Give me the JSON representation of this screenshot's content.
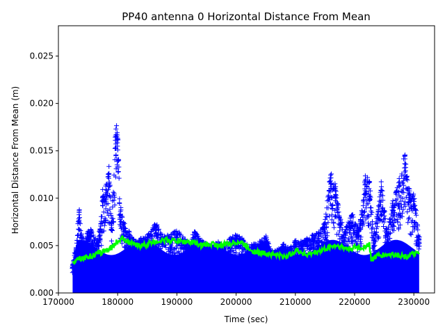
{
  "chart_data": {
    "type": "scatter",
    "title": "PP40 antenna 0 Horizontal Distance From Mean",
    "xlabel": "Time (sec)",
    "ylabel": "Horizontal Distance From Mean (m)",
    "xlim": [
      170000,
      233500
    ],
    "ylim": [
      0,
      0.0282
    ],
    "xticks": [
      170000,
      180000,
      190000,
      200000,
      210000,
      220000,
      230000
    ],
    "yticks": [
      0.0,
      0.005,
      0.01,
      0.015,
      0.02,
      0.025
    ],
    "xtick_labels": [
      "170000",
      "180000",
      "190000",
      "200000",
      "210000",
      "220000",
      "230000"
    ],
    "ytick_labels": [
      "0.000",
      "0.005",
      "0.010",
      "0.015",
      "0.020",
      "0.025"
    ],
    "grid": false,
    "x_range_data": [
      172400,
      230900
    ],
    "series": [
      {
        "marker": "+",
        "color": "#0000ff",
        "description_of_upper_envelope": "sampled max per time bin",
        "envelope": [
          [
            172400,
            0.0032
          ],
          [
            173000,
            0.005
          ],
          [
            173500,
            0.009
          ],
          [
            174000,
            0.006
          ],
          [
            175000,
            0.0065
          ],
          [
            175500,
            0.0068
          ],
          [
            176500,
            0.0055
          ],
          [
            177000,
            0.007
          ],
          [
            177500,
            0.011
          ],
          [
            178000,
            0.0115
          ],
          [
            178500,
            0.0138
          ],
          [
            179000,
            0.008
          ],
          [
            179700,
            0.0181
          ],
          [
            180000,
            0.017
          ],
          [
            180500,
            0.009
          ],
          [
            181000,
            0.0075
          ],
          [
            182000,
            0.0065
          ],
          [
            183000,
            0.0055
          ],
          [
            184000,
            0.0058
          ],
          [
            185000,
            0.006
          ],
          [
            186500,
            0.0075
          ],
          [
            187500,
            0.006
          ],
          [
            189000,
            0.0062
          ],
          [
            190000,
            0.0067
          ],
          [
            191000,
            0.006
          ],
          [
            192000,
            0.0052
          ],
          [
            193000,
            0.0065
          ],
          [
            194000,
            0.0058
          ],
          [
            195000,
            0.0052
          ],
          [
            196000,
            0.005
          ],
          [
            197000,
            0.0055
          ],
          [
            198000,
            0.005
          ],
          [
            199000,
            0.0058
          ],
          [
            200000,
            0.0062
          ],
          [
            201000,
            0.0058
          ],
          [
            202000,
            0.005
          ],
          [
            203000,
            0.0052
          ],
          [
            204000,
            0.0055
          ],
          [
            205000,
            0.006
          ],
          [
            206000,
            0.0045
          ],
          [
            207000,
            0.0046
          ],
          [
            208000,
            0.0052
          ],
          [
            209000,
            0.0048
          ],
          [
            210000,
            0.0056
          ],
          [
            211000,
            0.0055
          ],
          [
            212000,
            0.0058
          ],
          [
            213000,
            0.0062
          ],
          [
            214000,
            0.0065
          ],
          [
            215000,
            0.0075
          ],
          [
            216000,
            0.013
          ],
          [
            216800,
            0.0115
          ],
          [
            217500,
            0.008
          ],
          [
            218500,
            0.0068
          ],
          [
            219500,
            0.0085
          ],
          [
            220500,
            0.007
          ],
          [
            221000,
            0.0078
          ],
          [
            221800,
            0.0125
          ],
          [
            222500,
            0.012
          ],
          [
            223200,
            0.006
          ],
          [
            224000,
            0.009
          ],
          [
            224500,
            0.0118
          ],
          [
            225500,
            0.0065
          ],
          [
            226500,
            0.01
          ],
          [
            227500,
            0.0122
          ],
          [
            228500,
            0.015
          ],
          [
            229200,
            0.011
          ],
          [
            230000,
            0.0105
          ],
          [
            230900,
            0.006
          ]
        ]
      },
      {
        "marker": "line",
        "color": "#00ff00",
        "points": [
          [
            172400,
            0.003
          ],
          [
            173000,
            0.0037
          ],
          [
            174000,
            0.0037
          ],
          [
            175000,
            0.0038
          ],
          [
            176000,
            0.004
          ],
          [
            177000,
            0.0042
          ],
          [
            178000,
            0.0045
          ],
          [
            179000,
            0.0048
          ],
          [
            180000,
            0.0055
          ],
          [
            181000,
            0.0058
          ],
          [
            182000,
            0.0053
          ],
          [
            183000,
            0.005
          ],
          [
            184000,
            0.005
          ],
          [
            185000,
            0.0051
          ],
          [
            186000,
            0.0054
          ],
          [
            187000,
            0.0055
          ],
          [
            188000,
            0.0056
          ],
          [
            189000,
            0.0055
          ],
          [
            190000,
            0.0055
          ],
          [
            191000,
            0.0054
          ],
          [
            192000,
            0.0054
          ],
          [
            193000,
            0.0053
          ],
          [
            194000,
            0.005
          ],
          [
            195000,
            0.0051
          ],
          [
            196000,
            0.0052
          ],
          [
            197000,
            0.005
          ],
          [
            198000,
            0.0051
          ],
          [
            199000,
            0.0052
          ],
          [
            200000,
            0.0054
          ],
          [
            201000,
            0.0053
          ],
          [
            202000,
            0.0048
          ],
          [
            203000,
            0.0044
          ],
          [
            204000,
            0.0042
          ],
          [
            205000,
            0.0042
          ],
          [
            206000,
            0.0041
          ],
          [
            207000,
            0.004
          ],
          [
            208000,
            0.0038
          ],
          [
            209000,
            0.004
          ],
          [
            210000,
            0.0045
          ],
          [
            211000,
            0.0043
          ],
          [
            212000,
            0.004
          ],
          [
            213000,
            0.0042
          ],
          [
            214000,
            0.0044
          ],
          [
            215000,
            0.0046
          ],
          [
            216000,
            0.0049
          ],
          [
            217000,
            0.005
          ],
          [
            218000,
            0.0048
          ],
          [
            219000,
            0.0046
          ],
          [
            220000,
            0.0048
          ],
          [
            221000,
            0.0047
          ],
          [
            222000,
            0.005
          ],
          [
            222500,
            0.0051
          ],
          [
            222800,
            0.0035
          ],
          [
            223500,
            0.0038
          ],
          [
            224500,
            0.004
          ],
          [
            225500,
            0.004
          ],
          [
            226500,
            0.0041
          ],
          [
            227500,
            0.004
          ],
          [
            228500,
            0.0038
          ],
          [
            229500,
            0.004
          ],
          [
            230500,
            0.0042
          ],
          [
            230900,
            0.004
          ]
        ]
      }
    ]
  }
}
